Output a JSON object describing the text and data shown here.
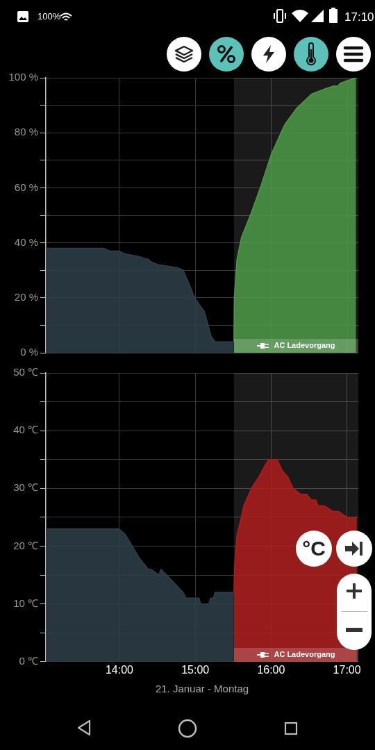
{
  "chart_data": [
    {
      "type": "area",
      "xlim": [
        13.03,
        17.15
      ],
      "ylim": [
        0,
        100
      ],
      "xticks": [
        {
          "value": 14,
          "label": null
        },
        {
          "value": 15,
          "label": null
        },
        {
          "value": 16,
          "label": null
        },
        {
          "value": 17,
          "label": null
        }
      ],
      "yticks": [
        {
          "value": 0,
          "label": "0 %"
        },
        {
          "value": 10,
          "label": null
        },
        {
          "value": 20,
          "label": "20 %"
        },
        {
          "value": 30,
          "label": null
        },
        {
          "value": 40,
          "label": "40 %"
        },
        {
          "value": 50,
          "label": null
        },
        {
          "value": 60,
          "label": "60 %"
        },
        {
          "value": 70,
          "label": null
        },
        {
          "value": 80,
          "label": "80 %"
        },
        {
          "value": 90,
          "label": null
        },
        {
          "value": 100,
          "label": "100 %"
        }
      ],
      "series": [
        {
          "color": "#2f404b",
          "x": [
            13.03,
            13.79,
            13.87,
            13.99,
            14.07,
            14.26,
            14.38,
            14.42,
            14.51,
            14.76,
            14.84,
            14.92,
            14.99,
            15.12,
            15.21,
            15.26,
            15.51
          ],
          "values": [
            38,
            38,
            37,
            37,
            36,
            35,
            34,
            33,
            32,
            31,
            30,
            25,
            20,
            15,
            6,
            4,
            4
          ]
        },
        {
          "color": "#4e9a48",
          "x": [
            15.51,
            15.515,
            15.55,
            15.61,
            15.74,
            15.87,
            16.0,
            16.18,
            16.34,
            16.53,
            16.71,
            16.82,
            16.88,
            16.91,
            17.01,
            17.12
          ],
          "values": [
            4,
            20,
            34,
            42,
            51,
            61,
            72,
            83,
            89,
            94,
            96,
            97,
            97,
            98,
            99,
            100
          ]
        }
      ],
      "bands": [
        {
          "axis": "x",
          "from": 15.51,
          "to": 17.15,
          "label": "AC Ladevorgang"
        }
      ],
      "annotations": [
        "100%",
        "17:10"
      ],
      "grid": true,
      "tick_labels": "y"
    },
    {
      "type": "area",
      "xlabel": "21. Januar - Montag",
      "xlim": [
        13.03,
        17.15
      ],
      "ylim": [
        0,
        50
      ],
      "xticks": [
        {
          "value": 14,
          "label": "14:00"
        },
        {
          "value": 15,
          "label": "15:00"
        },
        {
          "value": 16,
          "label": "16:00"
        },
        {
          "value": 17,
          "label": "17:00"
        }
      ],
      "yticks": [
        {
          "value": 0,
          "label": "0 ℃"
        },
        {
          "value": 5,
          "label": null
        },
        {
          "value": 10,
          "label": "10 ℃"
        },
        {
          "value": 15,
          "label": null
        },
        {
          "value": 20,
          "label": "20 ℃"
        },
        {
          "value": 25,
          "label": null
        },
        {
          "value": 30,
          "label": "30 ℃"
        },
        {
          "value": 35,
          "label": null
        },
        {
          "value": 40,
          "label": "40 ℃"
        },
        {
          "value": 45,
          "label": null
        },
        {
          "value": 50,
          "label": "50 ℃"
        }
      ],
      "series": [
        {
          "color": "#2f404b",
          "x": [
            13.03,
            13.99,
            14.08,
            14.26,
            14.38,
            14.42,
            14.52,
            14.55,
            14.84,
            14.88,
            15.05,
            15.07,
            15.18,
            15.2,
            15.24,
            15.26,
            15.51
          ],
          "values": [
            23,
            23,
            22,
            18,
            16,
            16,
            15,
            16,
            12,
            11,
            11,
            10,
            10,
            11,
            11,
            12,
            12
          ]
        },
        {
          "color": "#b01d1d",
          "x": [
            15.51,
            15.52,
            15.55,
            15.59,
            15.64,
            15.74,
            15.79,
            15.84,
            15.92,
            15.97,
            16.08,
            16.15,
            16.22,
            16.29,
            16.39,
            16.47,
            16.53,
            16.59,
            16.62,
            16.7,
            16.82,
            16.89,
            17.0,
            17.13
          ],
          "values": [
            12,
            17,
            22,
            24,
            27,
            30,
            31,
            32,
            34,
            35,
            35,
            33,
            32,
            30,
            29,
            29,
            28,
            28,
            27,
            27,
            26,
            26,
            25,
            25
          ]
        }
      ],
      "bands": [
        {
          "axis": "x",
          "from": 15.51,
          "to": 17.15,
          "label": "AC Ladevorgang"
        }
      ],
      "annotations": [
        "°C"
      ],
      "grid": true
    }
  ]
}
